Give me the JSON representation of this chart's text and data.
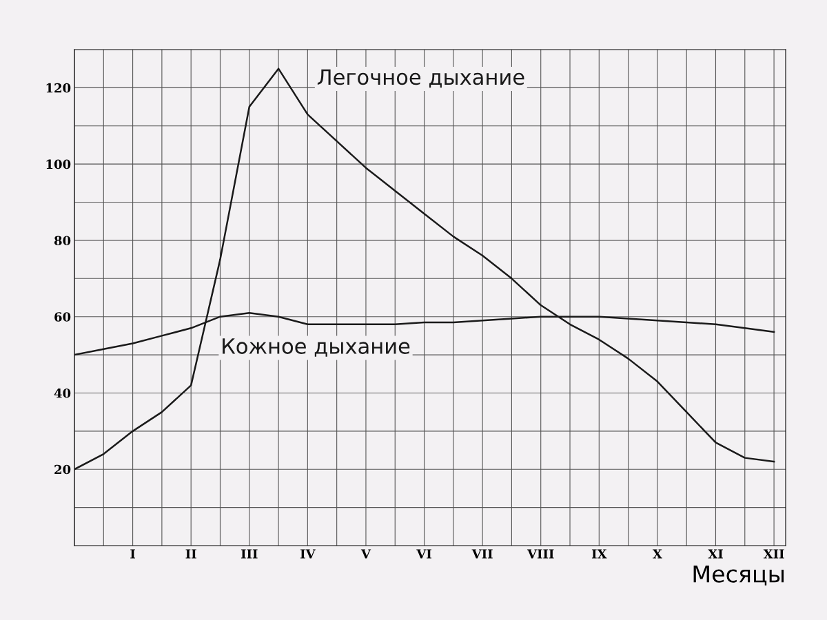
{
  "chart_data": {
    "type": "line",
    "xlabel": "Месяцы",
    "categories": [
      null,
      null,
      "I",
      null,
      "II",
      null,
      "III",
      null,
      "IV",
      null,
      "V",
      null,
      "VI",
      null,
      "VII",
      null,
      "VIII",
      null,
      "IX",
      null,
      "X",
      null,
      "XI",
      null,
      "XII"
    ],
    "ylim": [
      0,
      130
    ],
    "yticks": [
      {
        "value": 10,
        "label": null
      },
      20,
      {
        "value": 30,
        "label": null
      },
      40,
      {
        "value": 50,
        "label": null
      },
      60,
      {
        "value": 70,
        "label": null
      },
      80,
      {
        "value": 90,
        "label": null
      },
      100,
      {
        "value": 110,
        "label": null
      },
      120
    ],
    "grid": true,
    "marker": "none",
    "line_style": "solid",
    "series": [
      {
        "name": "Легочное дыхание",
        "color": "#1a1a1a",
        "values": [
          20,
          24,
          30,
          35,
          42,
          75,
          115,
          125,
          113,
          106,
          99,
          93,
          87,
          81,
          76,
          70,
          63,
          58,
          54,
          49,
          43,
          35,
          27,
          23,
          22
        ]
      },
      {
        "name": "Кожное дыхание",
        "color": "#1a1a1a",
        "values": [
          50,
          51.5,
          53,
          55,
          57,
          60,
          61,
          60,
          58,
          58,
          58,
          58,
          58.5,
          58.5,
          59,
          59.5,
          60,
          60,
          60,
          59.5,
          59,
          58.5,
          58,
          57,
          56
        ]
      }
    ]
  }
}
